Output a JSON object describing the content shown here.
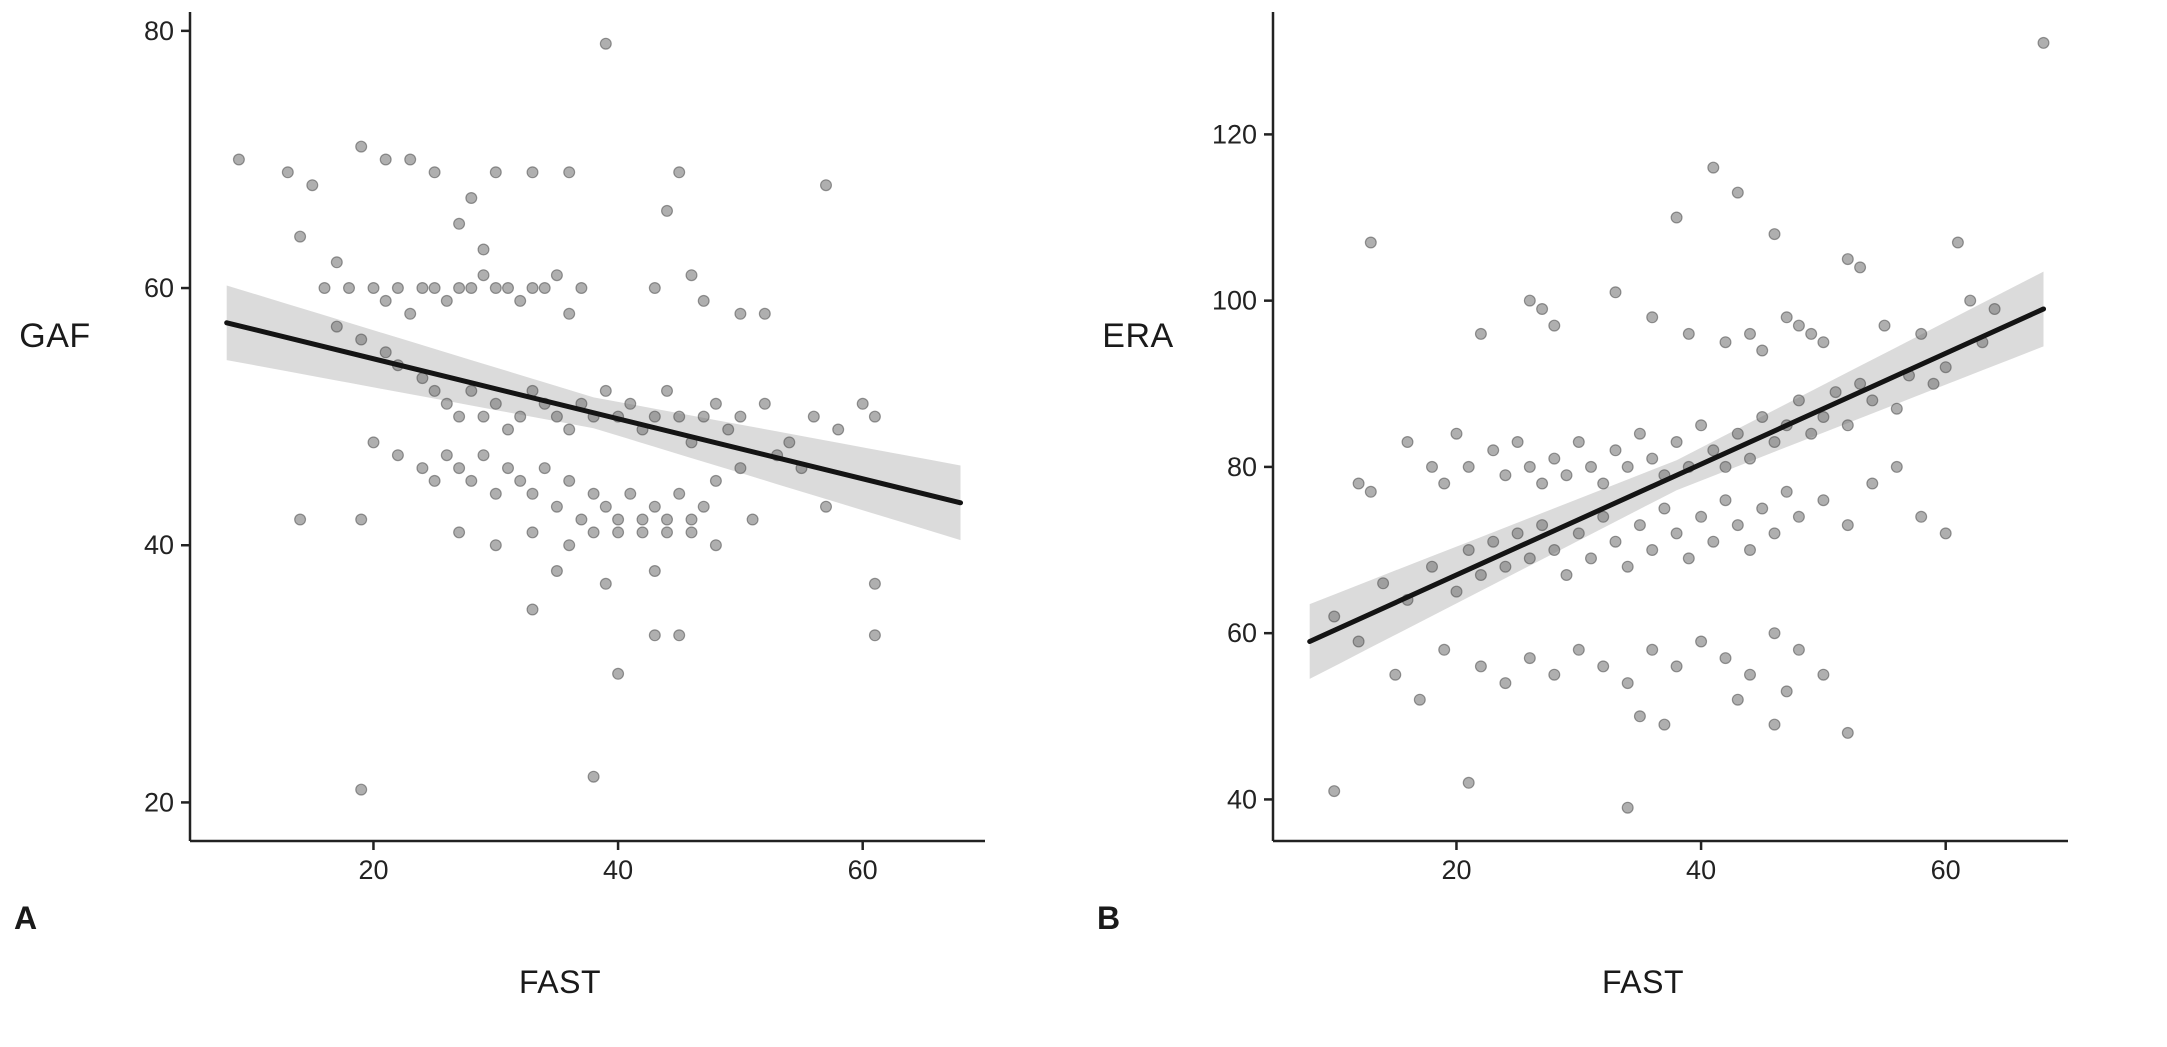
{
  "figure": {
    "background": "#ffffff",
    "panels": [
      {
        "letter": "A",
        "ylabel": "GAF",
        "xlabel": "FAST"
      },
      {
        "letter": "B",
        "ylabel": "ERA",
        "xlabel": "FAST"
      }
    ]
  },
  "chart_data": [
    {
      "type": "scatter",
      "title": "",
      "xlabel": "FAST",
      "ylabel": "GAF",
      "xlim": [
        5,
        70
      ],
      "ylim": [
        17,
        81
      ],
      "x_ticks": [
        20,
        40,
        60
      ],
      "y_ticks": [
        20,
        40,
        60,
        80
      ],
      "grid": false,
      "legend": "none",
      "point_color": "#6e6e6e",
      "line_color": "#141414",
      "band_color": "#bdbdbd",
      "regression_line": {
        "x": [
          8,
          68
        ],
        "y": [
          57.3,
          43.3
        ]
      },
      "confidence_band": {
        "halfwidth_mid": 1.2,
        "halfwidth_end": 2.9
      },
      "points": [
        [
          9,
          70
        ],
        [
          13,
          69
        ],
        [
          15,
          68
        ],
        [
          14,
          64
        ],
        [
          17,
          62
        ],
        [
          19,
          71
        ],
        [
          21,
          70
        ],
        [
          23,
          70
        ],
        [
          25,
          69
        ],
        [
          28,
          67
        ],
        [
          30,
          69
        ],
        [
          27,
          65
        ],
        [
          29,
          63
        ],
        [
          33,
          69
        ],
        [
          36,
          69
        ],
        [
          39,
          79
        ],
        [
          45,
          69
        ],
        [
          44,
          66
        ],
        [
          57,
          68
        ],
        [
          16,
          60
        ],
        [
          18,
          60
        ],
        [
          20,
          60
        ],
        [
          22,
          60
        ],
        [
          21,
          59
        ],
        [
          23,
          58
        ],
        [
          24,
          60
        ],
        [
          25,
          60
        ],
        [
          26,
          59
        ],
        [
          27,
          60
        ],
        [
          28,
          60
        ],
        [
          29,
          61
        ],
        [
          30,
          60
        ],
        [
          31,
          60
        ],
        [
          32,
          59
        ],
        [
          33,
          60
        ],
        [
          34,
          60
        ],
        [
          35,
          61
        ],
        [
          36,
          58
        ],
        [
          37,
          60
        ],
        [
          43,
          60
        ],
        [
          46,
          61
        ],
        [
          47,
          59
        ],
        [
          50,
          58
        ],
        [
          52,
          58
        ],
        [
          17,
          57
        ],
        [
          19,
          56
        ],
        [
          21,
          55
        ],
        [
          22,
          54
        ],
        [
          24,
          53
        ],
        [
          25,
          52
        ],
        [
          26,
          51
        ],
        [
          27,
          50
        ],
        [
          28,
          52
        ],
        [
          29,
          50
        ],
        [
          30,
          51
        ],
        [
          31,
          49
        ],
        [
          32,
          50
        ],
        [
          33,
          52
        ],
        [
          34,
          51
        ],
        [
          35,
          50
        ],
        [
          36,
          49
        ],
        [
          37,
          51
        ],
        [
          38,
          50
        ],
        [
          39,
          52
        ],
        [
          40,
          50
        ],
        [
          41,
          51
        ],
        [
          42,
          49
        ],
        [
          43,
          50
        ],
        [
          44,
          52
        ],
        [
          45,
          50
        ],
        [
          46,
          48
        ],
        [
          47,
          50
        ],
        [
          48,
          51
        ],
        [
          49,
          49
        ],
        [
          50,
          50
        ],
        [
          52,
          51
        ],
        [
          54,
          48
        ],
        [
          56,
          50
        ],
        [
          58,
          49
        ],
        [
          60,
          51
        ],
        [
          61,
          50
        ],
        [
          20,
          48
        ],
        [
          22,
          47
        ],
        [
          24,
          46
        ],
        [
          25,
          45
        ],
        [
          26,
          47
        ],
        [
          27,
          46
        ],
        [
          28,
          45
        ],
        [
          29,
          47
        ],
        [
          30,
          44
        ],
        [
          31,
          46
        ],
        [
          32,
          45
        ],
        [
          33,
          44
        ],
        [
          34,
          46
        ],
        [
          35,
          43
        ],
        [
          36,
          45
        ],
        [
          37,
          42
        ],
        [
          38,
          44
        ],
        [
          39,
          43
        ],
        [
          40,
          42
        ],
        [
          41,
          44
        ],
        [
          42,
          42
        ],
        [
          43,
          43
        ],
        [
          44,
          42
        ],
        [
          45,
          44
        ],
        [
          46,
          42
        ],
        [
          47,
          43
        ],
        [
          48,
          45
        ],
        [
          50,
          46
        ],
        [
          53,
          47
        ],
        [
          55,
          46
        ],
        [
          14,
          42
        ],
        [
          19,
          42
        ],
        [
          27,
          41
        ],
        [
          30,
          40
        ],
        [
          33,
          41
        ],
        [
          36,
          40
        ],
        [
          38,
          41
        ],
        [
          40,
          41
        ],
        [
          42,
          41
        ],
        [
          44,
          41
        ],
        [
          46,
          41
        ],
        [
          35,
          38
        ],
        [
          39,
          37
        ],
        [
          43,
          38
        ],
        [
          48,
          40
        ],
        [
          51,
          42
        ],
        [
          57,
          43
        ],
        [
          61,
          37
        ],
        [
          33,
          35
        ],
        [
          45,
          33
        ],
        [
          61,
          33
        ],
        [
          40,
          30
        ],
        [
          43,
          33
        ],
        [
          19,
          21
        ],
        [
          38,
          22
        ]
      ]
    },
    {
      "type": "scatter",
      "title": "",
      "xlabel": "FAST",
      "ylabel": "ERA",
      "xlim": [
        5,
        70
      ],
      "ylim": [
        35,
        134
      ],
      "x_ticks": [
        20,
        40,
        60
      ],
      "y_ticks": [
        40,
        60,
        80,
        100,
        120
      ],
      "grid": false,
      "legend": "none",
      "point_color": "#6e6e6e",
      "line_color": "#141414",
      "band_color": "#bdbdbd",
      "regression_line": {
        "x": [
          8,
          68
        ],
        "y": [
          59,
          99
        ]
      },
      "confidence_band": {
        "halfwidth_mid": 1.8,
        "halfwidth_end": 4.5
      },
      "points": [
        [
          13,
          107
        ],
        [
          41,
          116
        ],
        [
          43,
          113
        ],
        [
          38,
          110
        ],
        [
          46,
          108
        ],
        [
          61,
          107
        ],
        [
          52,
          105
        ],
        [
          53,
          104
        ],
        [
          68,
          131
        ],
        [
          22,
          96
        ],
        [
          26,
          100
        ],
        [
          27,
          99
        ],
        [
          28,
          97
        ],
        [
          33,
          101
        ],
        [
          36,
          98
        ],
        [
          39,
          96
        ],
        [
          42,
          95
        ],
        [
          44,
          96
        ],
        [
          45,
          94
        ],
        [
          47,
          98
        ],
        [
          48,
          97
        ],
        [
          49,
          96
        ],
        [
          50,
          95
        ],
        [
          55,
          97
        ],
        [
          58,
          96
        ],
        [
          62,
          100
        ],
        [
          64,
          99
        ],
        [
          12,
          78
        ],
        [
          13,
          77
        ],
        [
          16,
          83
        ],
        [
          18,
          80
        ],
        [
          19,
          78
        ],
        [
          20,
          84
        ],
        [
          21,
          80
        ],
        [
          23,
          82
        ],
        [
          24,
          79
        ],
        [
          25,
          83
        ],
        [
          26,
          80
        ],
        [
          27,
          78
        ],
        [
          28,
          81
        ],
        [
          29,
          79
        ],
        [
          30,
          83
        ],
        [
          31,
          80
        ],
        [
          32,
          78
        ],
        [
          33,
          82
        ],
        [
          34,
          80
        ],
        [
          35,
          84
        ],
        [
          36,
          81
        ],
        [
          37,
          79
        ],
        [
          38,
          83
        ],
        [
          39,
          80
        ],
        [
          40,
          85
        ],
        [
          41,
          82
        ],
        [
          42,
          80
        ],
        [
          43,
          84
        ],
        [
          44,
          81
        ],
        [
          45,
          86
        ],
        [
          46,
          83
        ],
        [
          47,
          85
        ],
        [
          48,
          88
        ],
        [
          49,
          84
        ],
        [
          50,
          86
        ],
        [
          51,
          89
        ],
        [
          52,
          85
        ],
        [
          53,
          90
        ],
        [
          54,
          88
        ],
        [
          56,
          87
        ],
        [
          57,
          91
        ],
        [
          59,
          90
        ],
        [
          60,
          92
        ],
        [
          63,
          95
        ],
        [
          10,
          62
        ],
        [
          12,
          59
        ],
        [
          14,
          66
        ],
        [
          16,
          64
        ],
        [
          18,
          68
        ],
        [
          20,
          65
        ],
        [
          21,
          70
        ],
        [
          22,
          67
        ],
        [
          23,
          71
        ],
        [
          24,
          68
        ],
        [
          25,
          72
        ],
        [
          26,
          69
        ],
        [
          27,
          73
        ],
        [
          28,
          70
        ],
        [
          29,
          67
        ],
        [
          30,
          72
        ],
        [
          31,
          69
        ],
        [
          32,
          74
        ],
        [
          33,
          71
        ],
        [
          34,
          68
        ],
        [
          35,
          73
        ],
        [
          36,
          70
        ],
        [
          37,
          75
        ],
        [
          38,
          72
        ],
        [
          39,
          69
        ],
        [
          40,
          74
        ],
        [
          41,
          71
        ],
        [
          42,
          76
        ],
        [
          43,
          73
        ],
        [
          44,
          70
        ],
        [
          45,
          75
        ],
        [
          46,
          72
        ],
        [
          47,
          77
        ],
        [
          48,
          74
        ],
        [
          50,
          76
        ],
        [
          52,
          73
        ],
        [
          54,
          78
        ],
        [
          56,
          80
        ],
        [
          58,
          74
        ],
        [
          60,
          72
        ],
        [
          15,
          55
        ],
        [
          17,
          52
        ],
        [
          19,
          58
        ],
        [
          22,
          56
        ],
        [
          24,
          54
        ],
        [
          26,
          57
        ],
        [
          28,
          55
        ],
        [
          30,
          58
        ],
        [
          32,
          56
        ],
        [
          34,
          54
        ],
        [
          36,
          58
        ],
        [
          38,
          56
        ],
        [
          40,
          59
        ],
        [
          42,
          57
        ],
        [
          44,
          55
        ],
        [
          46,
          60
        ],
        [
          48,
          58
        ],
        [
          50,
          55
        ],
        [
          35,
          50
        ],
        [
          37,
          49
        ],
        [
          43,
          52
        ],
        [
          47,
          53
        ],
        [
          52,
          48
        ],
        [
          46,
          49
        ],
        [
          10,
          41
        ],
        [
          21,
          42
        ],
        [
          34,
          39
        ]
      ]
    }
  ]
}
